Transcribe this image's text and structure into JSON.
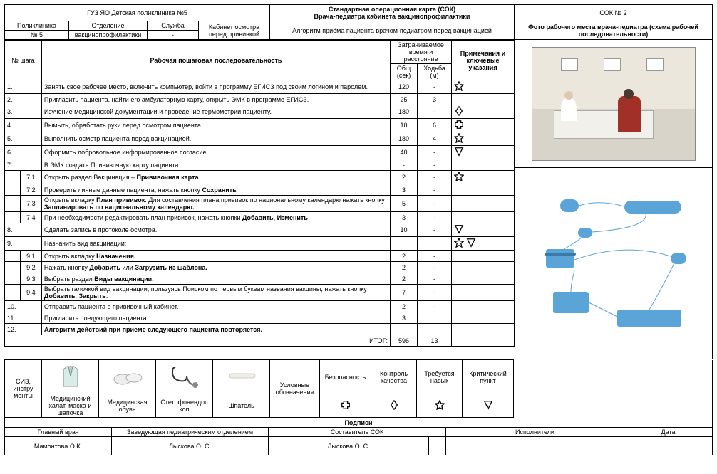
{
  "header": {
    "org": "ГУЗ ЯО Детская поликлиника №5",
    "sok_title_line1": "Стандартная операционная карта (СОК)",
    "sok_title_line2": "Врача-педиатра кабинета вакцинопрофилактики",
    "sok_num": "СОК № 2",
    "row2": {
      "c1l": "Поликлиника",
      "c1v": "№ 5",
      "c2l": "Отделение",
      "c2v": "вакцинопрофилактики",
      "c3l": "Служба",
      "c3v": "-",
      "c4l": "Кабинет осмотра перед прививкой",
      "c4v": "",
      "algo": "Алгоритм приёма пациента врачом-педиатром перед вакцинацией",
      "photo_label": "Фото рабочего места врача-педиатра (схема рабочей последовательности)"
    }
  },
  "steps_header": {
    "num": "№ шага",
    "desc": "Рабочая пошаговая последовательность",
    "time_group": "Затрачиваемое время и расстояние",
    "total": "Общ (сек)",
    "walk": "Ходьба (м)",
    "notes": "Примечания и ключевые указания"
  },
  "steps": [
    {
      "n": "1.",
      "sub": "",
      "txt": "Занять свое рабочее место, включить компьютер,  войти в программу ЕГИСЗ под своим логином и паролем.",
      "t": "120",
      "w": "-",
      "sym": "star"
    },
    {
      "n": "2.",
      "sub": "",
      "txt": "Пригласить пациента, найти его амбулаторную карту, открыть ЭМК в программе ЕГИСЗ.",
      "t": "25",
      "w": "3",
      "sym": ""
    },
    {
      "n": "3.",
      "sub": "",
      "txt": "Изучение медицинской документации и проведение термометрии пациенту.",
      "t": "180",
      "w": "-",
      "sym": "diamond"
    },
    {
      "n": "4",
      "sub": "",
      "txt": "Вымыть, обработать руки перед осмотром пациента.",
      "t": "10",
      "w": "6",
      "sym": "cross"
    },
    {
      "n": "5.",
      "sub": "",
      "txt": "Выполнить  осмотр пациента перед вакцинацией.",
      "t": "180",
      "w": "4",
      "sym": "star"
    },
    {
      "n": "6.",
      "sub": "",
      "txt": "Оформить добровольное информированное согласие.",
      "t": "40",
      "w": "-",
      "sym": "triangle"
    },
    {
      "n": "7.",
      "sub": "",
      "txt": "В ЭМК создать Прививочную карту пациента",
      "t": "-",
      "w": "-",
      "sym": ""
    },
    {
      "n": "",
      "sub": "7.1",
      "txt": "Открыть раздел Вакцинация – <b>Прививочная карта</b>",
      "t": "2",
      "w": "-",
      "sym": "star"
    },
    {
      "n": "",
      "sub": "7.2",
      "txt": "Проверить личные данные пациента, нажать кнопку <b>Сохранить</b>",
      "t": "3",
      "w": "-",
      "sym": ""
    },
    {
      "n": "",
      "sub": "7.3",
      "txt": "Открыть вкладку <b>План прививок</b>. Для составления плана прививок по национальному календарю нажать кнопку <b>Запланировать по национальному календарю.</b>",
      "t": "5",
      "w": "-",
      "sym": ""
    },
    {
      "n": "",
      "sub": "7.4",
      "txt": "При необходимости редактировать план прививок, нажать кнопки  <b>Добавить</b>, <b>Изменить</b>",
      "t": "3",
      "w": "-",
      "sym": ""
    },
    {
      "n": "8.",
      "sub": "",
      "txt": "Сделать запись в протоколе осмотра.",
      "t": "10",
      "w": "-",
      "sym": "triangle"
    },
    {
      "n": "9.",
      "sub": "",
      "txt": "Назначить вид вакцинации:",
      "t": "",
      "w": "",
      "sym": "star-tri"
    },
    {
      "n": "",
      "sub": "9.1",
      "txt": "Открыть вкладку <b>Назначения.</b>",
      "t": "2",
      "w": "-",
      "sym": ""
    },
    {
      "n": "",
      "sub": "9.2",
      "txt": "Нажать кнопку  <b>Добавить</b> или <b>Загрузить из шаблона.</b>",
      "t": "2",
      "w": "-",
      "sym": ""
    },
    {
      "n": "",
      "sub": "9.3",
      "txt": "Выбрать раздел <b>Виды вакцинации.</b>",
      "t": "2",
      "w": "-",
      "sym": ""
    },
    {
      "n": "",
      "sub": "9.4",
      "txt": "Выбрать галочкой вид вакцинации, пользуясь Поиском по первым буквам названия вакцины, нажать кнопку  <b>Добавить</b>, <b>Закрыть</b>.",
      "t": "7",
      "w": "-",
      "sym": ""
    },
    {
      "n": "10.",
      "sub": "",
      "txt": "Отправить  пациента  в прививочный кабинет.",
      "t": "2",
      "w": "-",
      "sym": ""
    },
    {
      "n": "11.",
      "sub": "",
      "txt": "Пригласить следующего пациента.",
      "t": "3",
      "w": "",
      "sym": ""
    },
    {
      "n": "12.",
      "sub": "",
      "txt": "<b>Алгоритм действий при приеме следующего пациента повторяется.</b>",
      "t": "",
      "w": "",
      "sym": ""
    }
  ],
  "totals": {
    "label": "ИТОГ:",
    "t": "596",
    "w": "13"
  },
  "siz": {
    "label": "СИЗ, инстру менты",
    "items": [
      {
        "name": "Медицинский халат, маска и шапочка"
      },
      {
        "name": "Медицинская обувь"
      },
      {
        "name": "Стетофонендос коп"
      },
      {
        "name": "Шпатель"
      }
    ],
    "legend_label": "Условные обозначения",
    "cols": [
      {
        "h": "Безопасность",
        "sym": "cross"
      },
      {
        "h": "Контроль качества",
        "sym": "diamond"
      },
      {
        "h": "Требуется навык",
        "sym": "star"
      },
      {
        "h": "Критический пункт",
        "sym": "triangle"
      }
    ]
  },
  "sign": {
    "title": "Подписи",
    "r1": [
      "Главный врач",
      "Заведующая педиатрическим отделением",
      "Составитель СОК",
      "Исполнители",
      "Дата"
    ],
    "r2": [
      "Мамонтова О.К.",
      "Лыскова О. С.",
      "Лыскова О. С.",
      "",
      ""
    ]
  },
  "colors": {
    "blue": "#5aa4d8"
  }
}
